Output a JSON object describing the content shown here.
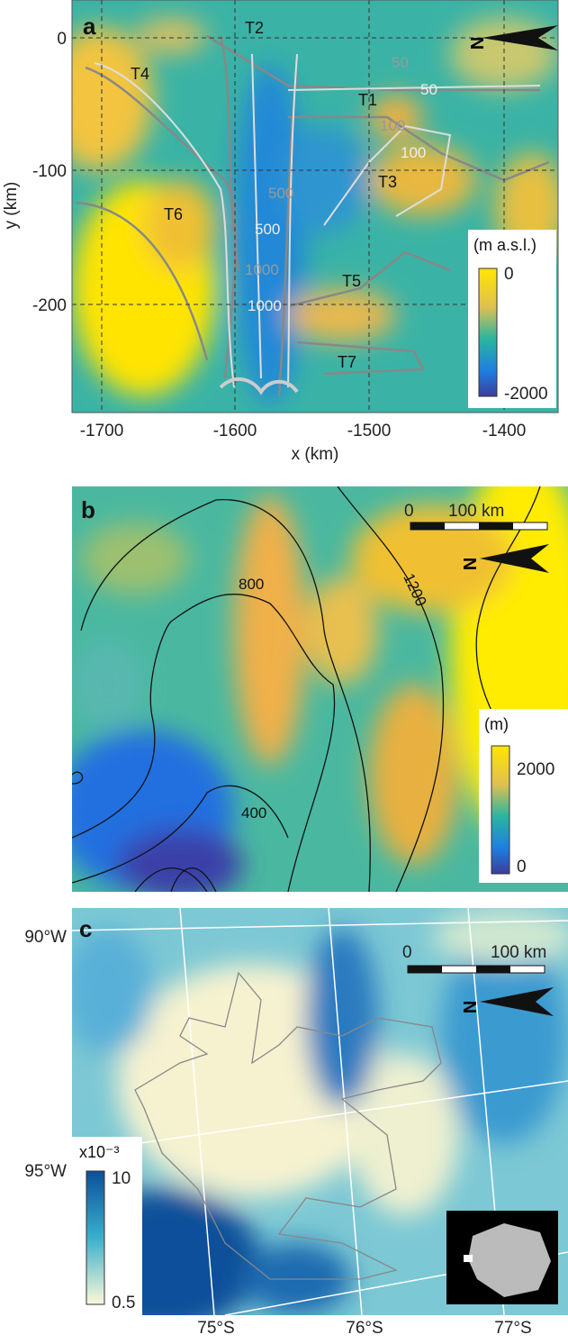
{
  "panel_a": {
    "label": "a",
    "x_axis_label": "x (km)",
    "y_axis_label": "y (km)",
    "x_ticks": [
      -1700,
      -1600,
      -1500,
      -1400
    ],
    "y_ticks": [
      0,
      -100,
      -200
    ],
    "north_label": "N",
    "tributaries": [
      "T1",
      "T2",
      "T3",
      "T4",
      "T5",
      "T6",
      "T7"
    ],
    "contour_labels": [
      50,
      50,
      100,
      100,
      500,
      500,
      1000,
      1000
    ],
    "colorbar": {
      "title": "(m a.s.l.)",
      "max": 0,
      "min": -2000
    }
  },
  "panel_b": {
    "label": "b",
    "scale_bar": {
      "start": 0,
      "end": "100 km"
    },
    "north_label": "N",
    "contour_labels": [
      800,
      1200,
      400
    ],
    "colorbar": {
      "title": "(m)",
      "max": 2000,
      "min": 0
    }
  },
  "panel_c": {
    "label": "c",
    "scale_bar": {
      "start": 0,
      "end": "100 km"
    },
    "north_label": "N",
    "longitude_labels": [
      "90°W",
      "95°W"
    ],
    "latitude_labels": [
      "75°S",
      "76°S",
      "77°S"
    ],
    "colorbar": {
      "title": "x10⁻³",
      "max": 10,
      "min": 0.5
    }
  }
}
